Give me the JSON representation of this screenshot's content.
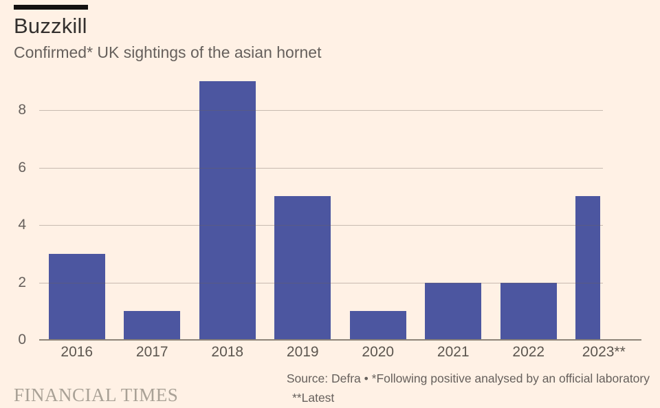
{
  "header": {
    "title": "Buzzkill",
    "subtitle": "Confirmed* UK sightings of the asian hornet"
  },
  "footer": {
    "source": "Source: Defra • *Following positive analysed by an official laboratory",
    "source_note": "**Latest",
    "logo": "FINANCIAL TIMES"
  },
  "colors": {
    "background": "#FFF1E5",
    "bar": "#4C56A0",
    "title_text": "#33302E",
    "body_text": "#66605C",
    "gridline": "#CBC0B4",
    "axis_line": "#8C8377",
    "logo_text": "#A9A196",
    "title_rule": "#141110"
  },
  "chart_data": {
    "type": "bar",
    "title": "Buzzkill",
    "subtitle": "Confirmed* UK sightings of the asian hornet",
    "categories": [
      "2016",
      "2017",
      "2018",
      "2019",
      "2020",
      "2021",
      "2022",
      "2023**"
    ],
    "values": [
      3,
      1,
      9,
      5,
      1,
      2,
      2,
      5
    ],
    "xlabel": "",
    "ylabel": "",
    "yticks": [
      0,
      2,
      4,
      6,
      8
    ],
    "ylim": [
      0,
      9.4
    ],
    "grid": "horizontal",
    "legend": "none",
    "bar_color": "#4C56A0"
  }
}
